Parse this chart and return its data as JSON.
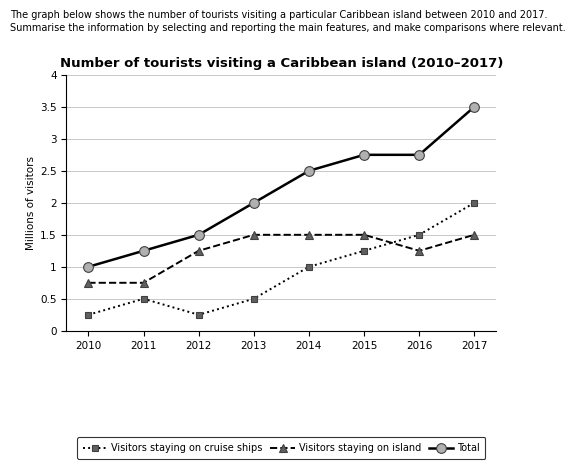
{
  "title": "Number of tourists visiting a Caribbean island (2010–2017)",
  "header_line1": "The graph below shows the number of tourists visiting a particular Caribbean island between 2010 and 2017.",
  "header_line2": "Summarise the information by selecting and reporting the main features, and make comparisons where relevant.",
  "ylabel": "Millions of visitors",
  "years": [
    2010,
    2011,
    2012,
    2013,
    2014,
    2015,
    2016,
    2017
  ],
  "cruise_ships": [
    0.25,
    0.5,
    0.25,
    0.5,
    1.0,
    1.25,
    1.5,
    2.0
  ],
  "island": [
    0.75,
    0.75,
    1.25,
    1.5,
    1.5,
    1.5,
    1.25,
    1.5
  ],
  "total": [
    1.0,
    1.25,
    1.5,
    2.0,
    2.5,
    2.75,
    2.75,
    3.5
  ],
  "ylim": [
    0,
    4
  ],
  "yticks": [
    0,
    0.5,
    1.0,
    1.5,
    2.0,
    2.5,
    3.0,
    3.5,
    4.0
  ],
  "legend_cruise": "Visitors staying on cruise ships",
  "legend_island": "Visitors staying on island",
  "legend_total": "Total",
  "header1_fontsize": 7.0,
  "header2_fontsize": 7.0,
  "title_fontsize": 9.5,
  "tick_fontsize": 7.5,
  "ylabel_fontsize": 7.5,
  "legend_fontsize": 7.0
}
